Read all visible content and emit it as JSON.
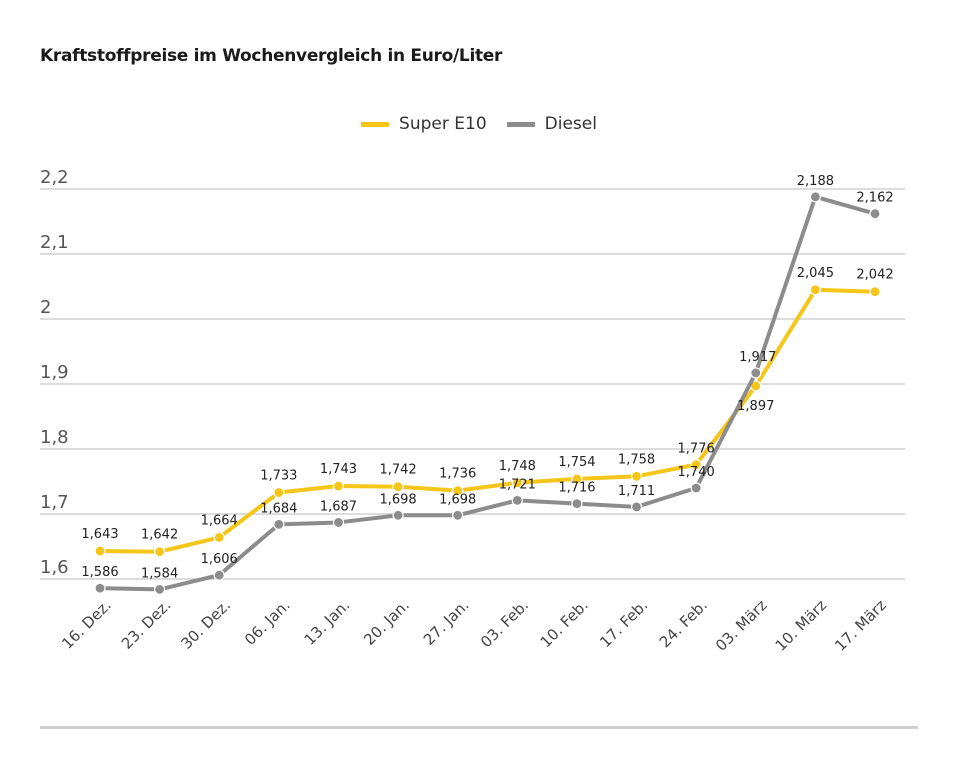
{
  "chart_data": {
    "type": "line",
    "title": "Kraftstoffpreise im Wochenvergleich in Euro/Liter",
    "xlabel": "",
    "ylabel": "",
    "x": [
      "16. Dez.",
      "23. Dez.",
      "30. Dez.",
      "06. Jan.",
      "13. Jan.",
      "20. Jan.",
      "27. Jan.",
      "03. Feb.",
      "10. Feb.",
      "17. Feb.",
      "24. Feb.",
      "03. März",
      "10. März",
      "17. März"
    ],
    "series": [
      {
        "name": "Super E10",
        "color": "#f5c518",
        "values": [
          1.643,
          1.642,
          1.664,
          1.733,
          1.743,
          1.742,
          1.736,
          1.748,
          1.754,
          1.758,
          1.776,
          1.897,
          2.045,
          2.042
        ],
        "labels": [
          "1,643",
          "1,642",
          "1,664",
          "1,733",
          "1,743",
          "1,742",
          "1,736",
          "1,748",
          "1,754",
          "1,758",
          "1,776",
          "1,897",
          "2,045",
          "2,042"
        ]
      },
      {
        "name": "Diesel",
        "color": "#8c8c8c",
        "values": [
          1.586,
          1.584,
          1.606,
          1.684,
          1.687,
          1.698,
          1.698,
          1.721,
          1.716,
          1.711,
          1.74,
          1.917,
          2.188,
          2.162
        ],
        "labels": [
          "1,586",
          "1,584",
          "1,606",
          "1,684",
          "1,687",
          "1,698",
          "1,698",
          "1,721",
          "1,716",
          "1,711",
          "1,740",
          "1,917",
          "2,188",
          "2,162"
        ]
      }
    ],
    "yticks": [
      1.6,
      1.7,
      1.8,
      1.9,
      2.0,
      2.1,
      2.2
    ],
    "ytick_labels": [
      "1,6",
      "1,7",
      "1,8",
      "1,9",
      "2",
      "2,1",
      "2,2"
    ],
    "ylim": [
      1.6,
      2.2
    ],
    "grid": true,
    "legend_position": "top-center"
  }
}
